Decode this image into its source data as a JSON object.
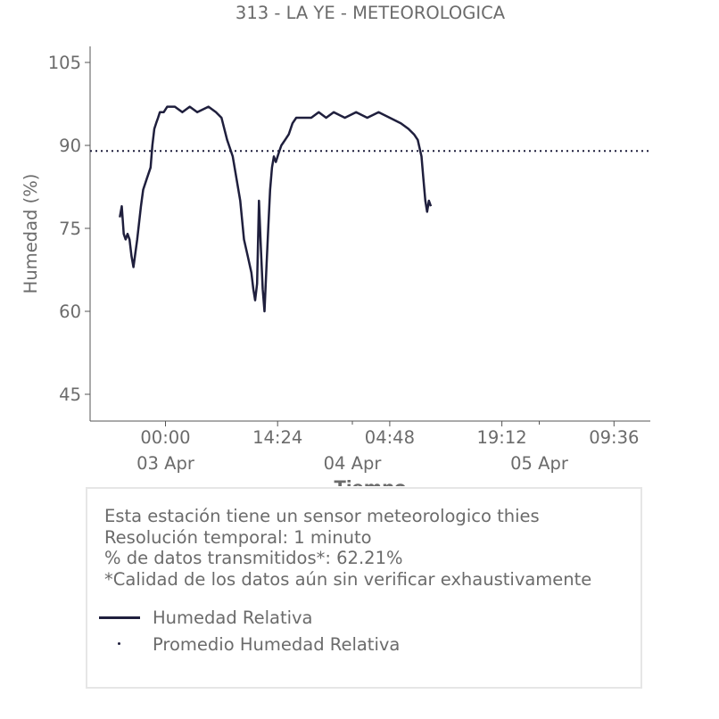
{
  "chart_data": {
    "type": "line",
    "title": "313 - LA YE - METEOROLOGICA",
    "xlabel": "Tiempo",
    "ylabel": "Humedad (%)",
    "ylim": [
      40,
      108
    ],
    "yticks": [
      "105",
      "90",
      "75",
      "60",
      "45"
    ],
    "xticks": [
      "00:00",
      "14:24",
      "04:48",
      "19:12",
      "09:36"
    ],
    "date_labels": [
      "03 Apr",
      "04 Apr",
      "05 Apr"
    ],
    "grid": false,
    "legend_placement": "below",
    "mean_value": 89,
    "series": [
      {
        "name": "Humedad Relativa",
        "color": "#1f1f3d",
        "x": [
          "2 Apr 18:08",
          "2 Apr 18:23",
          "2 Apr 18:38",
          "2 Apr 18:53",
          "2 Apr 19:08",
          "2 Apr 19:23",
          "2 Apr 19:38",
          "2 Apr 19:53",
          "2 Apr 20:22",
          "2 Apr 20:51",
          "2 Apr 21:08",
          "2 Apr 21:36",
          "2 Apr 22:05",
          "2 Apr 22:19",
          "2 Apr 22:34",
          "2 Apr 22:48",
          "2 Apr 23:03",
          "2 Apr 23:17",
          "2 Apr 23:46",
          "3 Apr 00:14",
          "3 Apr 01:12",
          "3 Apr 02:10",
          "3 Apr 03:07",
          "3 Apr 04:05",
          "3 Apr 05:31",
          "3 Apr 06:29",
          "3 Apr 07:12",
          "3 Apr 07:55",
          "3 Apr 08:38",
          "3 Apr 09:07",
          "3 Apr 09:36",
          "3 Apr 10:05",
          "3 Apr 10:34",
          "3 Apr 11:02",
          "3 Apr 11:17",
          "3 Apr 11:31",
          "3 Apr 11:46",
          "3 Apr 12:00",
          "3 Apr 12:14",
          "3 Apr 12:29",
          "3 Apr 12:43",
          "3 Apr 12:58",
          "3 Apr 13:12",
          "3 Apr 13:26",
          "3 Apr 13:41",
          "3 Apr 13:55",
          "3 Apr 14:10",
          "3 Apr 14:24",
          "3 Apr 14:38",
          "3 Apr 14:53",
          "3 Apr 15:22",
          "3 Apr 15:50",
          "3 Apr 16:19",
          "3 Apr 16:48",
          "3 Apr 17:46",
          "3 Apr 18:43",
          "3 Apr 19:41",
          "3 Apr 20:38",
          "3 Apr 21:36",
          "3 Apr 23:02",
          "4 Apr 00:29",
          "4 Apr 01:55",
          "4 Apr 03:22",
          "4 Apr 04:48",
          "4 Apr 06:14",
          "4 Apr 07:12",
          "4 Apr 07:55",
          "4 Apr 08:24",
          "4 Apr 08:53",
          "4 Apr 09:07",
          "4 Apr 09:22",
          "4 Apr 09:36",
          "4 Apr 09:50",
          "4 Apr 10:05"
        ],
        "y": [
          77,
          79,
          74,
          73,
          74,
          73,
          70,
          68,
          73,
          79,
          82,
          84,
          86,
          90,
          93,
          94,
          95,
          96,
          96,
          97,
          97,
          96,
          97,
          96,
          97,
          96,
          95,
          91,
          88,
          84,
          80,
          73,
          70,
          67,
          64,
          62,
          65,
          80,
          72,
          64,
          60,
          68,
          75,
          82,
          86,
          88,
          87,
          88,
          89,
          90,
          91,
          92,
          94,
          95,
          95,
          95,
          96,
          95,
          96,
          95,
          96,
          95,
          96,
          95,
          94,
          93,
          92,
          91,
          88,
          84,
          80,
          78,
          80,
          79
        ]
      },
      {
        "name": "Promedio Humedad Relativa",
        "color": "#1f1f3d",
        "style": "dotted"
      }
    ]
  },
  "info": {
    "line1": "Esta estación tiene un sensor meteorologico thies",
    "line2": "Resolución temporal: 1 minuto",
    "line3": "% de datos transmitidos*: 62.21%",
    "line4": "*Calidad de los datos aún sin verificar exhaustivamente"
  }
}
